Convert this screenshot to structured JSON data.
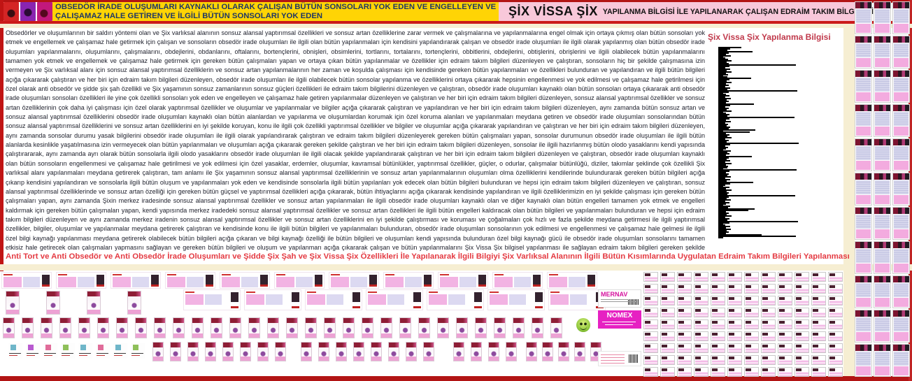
{
  "header": {
    "logo_icon": "figure-collage-icon",
    "left_title_line1": "OBSEDÖR İRADE OLUŞUMLARI KAYNAKLI OLARAK ÇALIŞAN BÜTÜN SONSOLARI YOK EDEN VE ENGELLEYEN VE",
    "left_title_line2": "ÇALIŞAMAZ HALE GETİREN VE İLGİLİ BÜTÜN SONSOLARI YOK EDEN",
    "right_title_main": "ŞİX VİSSA ŞİX",
    "right_title_sub": "YAPILANMA BİLGİSİ İLE YAPILANARAK ÇALIŞAN EDRAİM TAKIM BİLGİLERİ"
  },
  "body_text": "Obsedörler ve oluşumlarının bir saldırı yöntemi olan ve Şix varlıksal alanının sonsuz alansal yaptırımsal özellikleri ve sonsuz artan özelliklerine zarar vermek ve çalışmalarına ve yapılanmalarına engel olmak için ortaya çıkmış olan bütün sonsoları yok etmek ve engellemek ve çalışamaz hale getirmek için çalışan ve sonsoların obsedör irade oluşumları ile ilgili olan bütün yapılanmaları için kendisini yapılandırarak çalışan ve obsedör irade oluşumları ile ilgili olarak yapılanmış olan bütün obsedör irade oluşumları yapılanmalarını, oluşumlarını, çalışmalarını, obdejlerini, obdanlarını, oftalarını, bortençlerini, obnişleri, obsimlerini, tortlarını, tortalarını, tortençlerini, obbitlerini, obdejlerini, obtişlerini, obrişlerini ve ilgili olabilecek bütün yapılanmalarını tamamen yok etmek ve engellemek ve çalışamaz hale getirmek için gereken bütün çalışmaları yapan ve ortaya çıkan bütün yapılanmalar ve özellikler için edraim takım bilgileri düzenleyen ve çalıştıran, sonsoların hiç bir şekilde çalışmasına izin vermeyen ve Şix varlıksal alanı için sonsuz alansal yaptırımsal özelliklerin ve sonsuz artan yapılanmalarının her zaman ve koşulda çalışması için kendisinde gereken bütün yapılanmaları ve özellikleri bulunduran ve yapılandıran ve ilgili bütün bilgileri açığa çıkararak çalıştıran ve her biri için edraim takım bilgileri düzenleyen, obsedör irade oluşumları ile ilgili olabilecek bütün sonsolar yapılanma ve özelliklerini ortaya çıkararak hepsinin engellenmesi ve yok edilmesi ve çalışamaz hale getirilmesi için özel olarak anti obsedör ve şidde şix şah özellikli ve Şix yaşamının sonsuz zamanlarının sonsuz güçleri özellikleri ile edraim takım bilgilerini düzenleyen ve çalıştıran, obsedör irade oluşumları kaynaklı olan bütün sonsoları ortaya çıkararak anti obsedör irade oluşumları sonsoları özellikleri ile yine çok özellikli sonsoları yok eden ve engelleyen ve çalışamaz hale getiren yapılanmalar düzenleyen ve çalıştıran ve her biri için edraim takım bilgileri düzenleyen, sonsuz alansal yaptırımsal özellikler ve sonsuz artan özelliklerinin çok daha iyi çalışması için özel olarak yaptırımsal özellikler ve oluşumlar ve yapılanmalar ve bilgiler açığa çıkararak çalıştıran ve yapılandıran ve her biri için edraim takım bilgileri düzenleyen, aynı zamanda bütün sonsuz artan ve sonsuz alansal yaptırımsal özelliklerini obsedör irade oluşumları kaynaklı olan bütün alanlardan ve yapılanma ve oluşumlardan korumak için özel koruma alanları ve yapılanmaları meydana getiren ve obsedör irade oluşumları sonsolarından bütün sonsuz alansal yaptırımsal özelliklerini ve sonsuz artan özelliklerini en iyi şekilde koruyan, konu ile ilgili çok özellikli yaptırımsal özellikler ve bilgiler ve oluşumlar açığa çıkararak yapılandıran ve çalıştıran ve her biri için edraim takım bilgileri düzenleyen, aynı zamanda sonsolar durumu yasak bilgilerini obsedör irade oluşumları ile ilgili olarak yapılandırarak çalıştıran ve edraim takım bilgileri düzenleyerek gereken bütün çalışmaları yapan, sonsolar durumunun obsedör irade oluşumları ile ilgili bütün alanlarda kesinlikle yaşatılmasına izin vermeyecek olan bütün yapılanmaları ve oluşumları açığa çıkararak gereken şekilde çalıştıran ve her biri için edraim takım bilgileri düzenleyen, sonsolar ile ilgili hazırlanmış bütün olodo yasaklarını kendi yapısında çalıştırararak, aynı zamanda ayrı olarak bütün sonsolarla ilgili olodo yasaklarını obsedör irade oluşumları ile ilgili olacak şekilde yapılandırarak çalıştıran ve her biri için edraim takım bilgileri düzenleyen ve çalıştıran, obsedör irade oluşumları kaynaklı olan bütün sonsoların engellenmesi ve çalışamaz hale getirilmesi ve yok edilmesi için özel yasaklar, erdemler, oluşumlar, kavramsal bütünlükler, yaptırımsal özellikler, güçler, o odurlar, çalışmalar bütünlüğü, diziler, takımlar şeklinde çok özellikli Şix varlıksal alanı yapılanmaları meydana getirerek çalıştıran, tam anlamı ile Şix yaşamının sonsuz alansal yaptırımsal özelliklerinin ve sonsuz artan yapılanmalarının oluşumları olma özelliklerini kendilerinde bulundurarak gereken bütün bilgileri açığa çıkarıp kendisini yapılandıran ve sonsolarla ilgili bütün oluşum ve yapılanmaları yok eden ve kendisinde sonsolarla ilgili bütün yapılanları yok edecek olan bütün bilgileri bulunduran ve hepsi için edraim takım bilgileri düzenleyen ve çalıştıran, sonsuz alansal yaptırımsal özelliklerinde ve sonsuz artan özelliği için gereken bütün güçsel ve yaptırımsal özellikleri açığa çıkararak, bütün ihtiyaçlarını açığa çıkararak kendisinde yapılandıran ve ilgili özelliklerimizin en iyi şekilde çalışması için gereken bütün çalışmaları yapan, aynı zamanda Şixin merkez iradesinde sonsuz alansal yaptırımsal özellikler ve sonsuz artan yapılanmaları ile ilgili obsedör irade oluşumları kaynaklı olan ve diğer kaynaklı olan bütün engelleri tamamen yok etmek ve engelleri kaldırmak için gereken bütün çalışmaları yapan, kendi yapısında merkez iradedeki sonsuz alansal yaptırımsal özellikler ve sonsuz artan özellikleri ile ilgili bütün engelleri kaldıracak olan bütün bilgileri ve yapılanmaları bulunduran ve hepsi için edraim takım bilgileri düzenleyen ve aynı zamanda merkez iradenin sonsuz alansal yaptırımsal özellikler ve sonsuz artan özelliklerini en iyi şekilde çalıştırması ve koruması ve çoğalmaları çok hızlı ve fazla şekilde meydana getirmesi ile ilgili yaptırımsal özellikler, bilgiler, oluşumlar ve yapılanmalar meydana getirerek çalıştıran ve kendisinde konu ile ilgili bütün bilgileri ve yapılanmaları bulunduran, obsedör irade oluşumları sonsolarının yok edilmesi ve engellenmesi ve çalışamaz hale gelmesi ile ilgili özel bilgi kaynağı yapılanması meydana getirerek olabilecek bütün bilgileri açığa çıkaran ve bilgi kaynağı özelliği ile bütün bilgileri ve oluşumları kendi yapısında bulunduran özel bilgi kaynağı gücü ile obsedör irade oluşumları sonsolarını tamamen etkisiz hale getirecek olan çalışmaları yapmasını sağlayan ve gereken bütün bilgileri ve oluşum ve yapılanmarı açığa çıkararak çalışan ve bütün yapılanmalarını Şix Vissa Şix bilgisel yapılanması ile sağlayan edraim takım bilgileri gereken şekilde yapılanır.",
  "footer_banner": "Anti Tort ve Anti Obsedör ve Anti Obsedör İrade Oluşumları ve Şidde Şix Şah ve Şix Vissa Şix Özellikleri İle Yapılanarak İlgili Bilgiyi Şix Varlıksal Alanının İlgili Bütün Kısımlarında Uygulatan Edraim Takım Bilgileri Yapılanması",
  "chart_data": {
    "type": "bar",
    "orientation": "horizontal",
    "title": "Şix Vissa Şix Yapılanma Bilgisi",
    "xlabel": "",
    "ylabel": "",
    "axis_tick_labels_visible": false,
    "legend": "none",
    "bar_color": "#000000",
    "title_color": "#c0394b",
    "values": [
      26,
      10,
      6,
      42,
      8,
      4,
      11,
      3,
      7,
      12,
      5,
      8,
      104,
      9,
      3,
      10,
      5,
      12,
      4,
      7,
      6,
      40,
      9,
      5,
      12,
      4,
      8,
      3,
      10,
      6,
      106,
      8,
      4,
      9,
      3,
      11,
      5,
      8,
      4,
      44,
      10,
      3,
      8,
      5,
      12,
      4,
      9,
      6,
      102,
      9,
      4,
      11,
      3,
      7,
      5,
      10,
      8,
      46,
      38,
      4,
      9,
      6,
      12,
      3,
      8,
      5,
      108,
      10,
      3,
      7,
      4,
      11,
      6,
      9,
      4,
      41,
      8,
      5,
      10,
      3,
      12,
      4,
      7,
      6,
      105,
      9,
      4,
      8,
      6,
      11,
      3,
      10,
      5,
      43,
      10,
      3,
      9,
      4,
      12,
      5,
      8,
      6,
      103,
      8,
      5,
      11,
      3,
      9,
      4,
      10,
      7,
      45,
      36,
      4,
      8,
      5,
      12,
      3,
      9,
      6,
      107,
      9,
      3,
      10,
      4,
      11,
      5,
      8,
      4,
      55,
      104
    ]
  },
  "cards": {
    "mernav_label": "MERNAV",
    "nomex_label": "NOMEX",
    "smiley_icon": "smiley-face-icon"
  },
  "colors": {
    "frame_red": "#b21414",
    "header_yellow": "#ffd405",
    "header_navy_text": "#1f3864",
    "header_pink": "#f8c8da",
    "slogan_red": "#e43a42",
    "cream_band": "#f6eed2",
    "thumbnail_pink": "#f2b3e3"
  },
  "galleries": {
    "banner_row1": {
      "count": 11
    },
    "banner_row2": {
      "count": 7
    },
    "products_row2": {
      "count": 4
    },
    "products_row3": {
      "count": 30
    },
    "mini_strip": {
      "count": 8
    },
    "products_row4_clusters": [
      8,
      8,
      4,
      5
    ],
    "stamp_grid": {
      "cols": 12,
      "rows": 9
    },
    "right_strip": {
      "cols": 3,
      "rows": 11
    }
  }
}
